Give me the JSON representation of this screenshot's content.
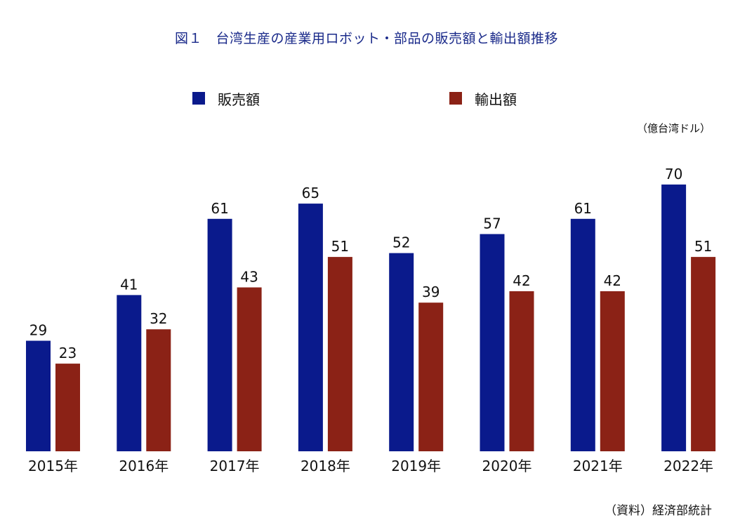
{
  "title": "図１　台湾生産の産業用ロボット・部品の販売額と輸出額推移",
  "unit_label": "（億台湾ドル）",
  "source_label": "（資料）経済部統計",
  "colors": {
    "title": "#1a2a8a",
    "sales": "#0a1a8c",
    "export": "#8b2216"
  },
  "chart_data": {
    "type": "bar",
    "categories": [
      "2015年",
      "2016年",
      "2017年",
      "2018年",
      "2019年",
      "2020年",
      "2021年",
      "2022年"
    ],
    "series": [
      {
        "name": "販売額",
        "color": "#0a1a8c",
        "values": [
          29,
          41,
          61,
          65,
          52,
          57,
          61,
          70
        ]
      },
      {
        "name": "輸出額",
        "color": "#8b2216",
        "values": [
          23,
          32,
          43,
          51,
          39,
          42,
          42,
          51
        ]
      }
    ],
    "ylim": [
      0,
      70
    ],
    "grid": false,
    "legend_position": "top"
  }
}
